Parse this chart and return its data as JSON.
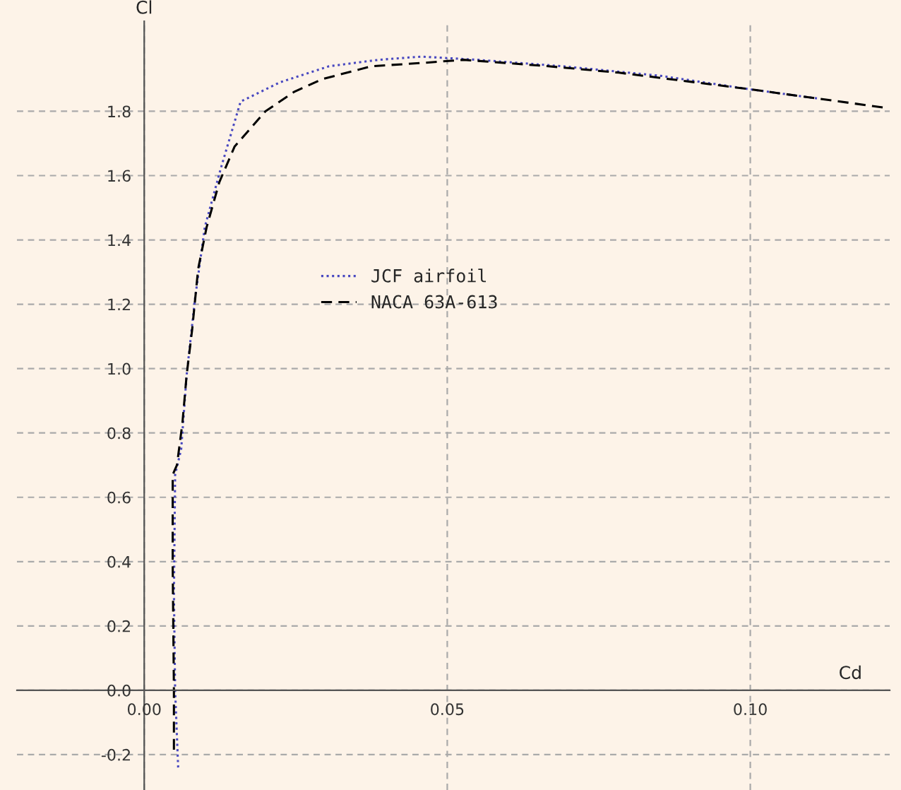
{
  "chart_data": {
    "type": "line",
    "xlabel": "Cd",
    "ylabel": "Cl",
    "xlim": [
      -0.021,
      0.123
    ],
    "ylim": [
      -0.31,
      2.08
    ],
    "xticks": [
      {
        "value": 0,
        "label": "0.00"
      },
      {
        "value": 0.05,
        "label": "0.05"
      },
      {
        "value": 0.1,
        "label": "0.10"
      }
    ],
    "yticks": [
      -0.2,
      {
        "value": 0,
        "label": "0.0"
      },
      0.2,
      0.4,
      0.6,
      0.8,
      {
        "value": 1,
        "label": "1.0"
      },
      1.2,
      1.4,
      1.6,
      1.8
    ],
    "grid": true,
    "legend": "center",
    "series": [
      {
        "name": "JCF airfoil",
        "color": "#4848c0",
        "line_style": "dotted",
        "x": [
          0.0056,
          0.0051,
          0.0049,
          0.0051,
          0.0061,
          0.007,
          0.0084,
          0.01,
          0.0126,
          0.0159,
          0.0224,
          0.0305,
          0.0387,
          0.0457,
          0.055,
          0.069,
          0.0853,
          0.0993,
          0.111
        ],
        "values": [
          -0.24,
          0,
          0.3,
          0.67,
          0.75,
          0.98,
          1.22,
          1.44,
          1.62,
          1.83,
          1.89,
          1.94,
          1.96,
          1.97,
          1.96,
          1.94,
          1.91,
          1.87,
          1.84
        ]
      },
      {
        "name": "NACA 63A-613",
        "color": "#000000",
        "line_style": "dashed",
        "x": [
          0.0049,
          0.0049,
          0.0047,
          0.0047,
          0.0054,
          0.0063,
          0.007,
          0.0079,
          0.0089,
          0.0103,
          0.0124,
          0.0149,
          0.02,
          0.0247,
          0.0294,
          0.0375,
          0.0457,
          0.0527,
          0.0667,
          0.0783,
          0.0993,
          0.111,
          0.1226
        ],
        "values": [
          -0.185,
          0,
          0.39,
          0.67,
          0.7,
          0.83,
          0.98,
          1.12,
          1.31,
          1.44,
          1.58,
          1.69,
          1.8,
          1.86,
          1.9,
          1.94,
          1.95,
          1.96,
          1.94,
          1.92,
          1.87,
          1.84,
          1.81
        ]
      }
    ]
  }
}
